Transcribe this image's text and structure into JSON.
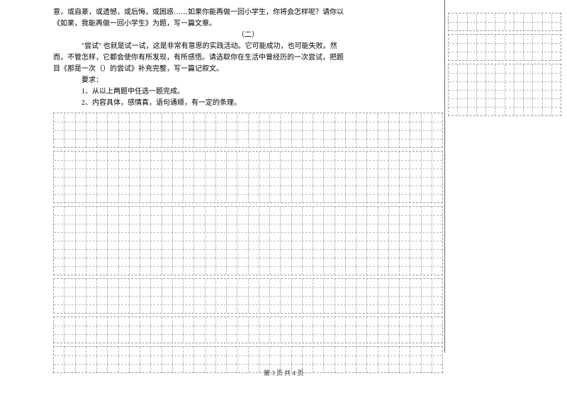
{
  "text": {
    "line1": "意，或自豪，或遗憾，或后悔，或困惑……如果你能再做一回小学生，你将会怎样呢？请你以",
    "line2": "《如果，我能再做一回小学生》为题，写一篇文章。",
    "sec2_title": "（二）",
    "line3": "\"尝试\" 也就是试一试，这是非常有意思的实践活动。它可能成功，也可能失败。然",
    "line4": "而，不管怎样，它都会使你有所发现，有所感悟。请选取你在生活中曾经历的一次尝试，把题",
    "line5": "目《那是一次（）的尝试》补充完整，写一篇记叙文。",
    "req_label": "要求：",
    "req1": "1、从以上两题中任选一题完成。",
    "req2": "2、内容具体，感情真，语句通顺，有一定的条理。"
  },
  "grids": {
    "left": {
      "cols": 36,
      "sections": [
        4,
        6,
        8,
        4,
        3,
        3
      ]
    },
    "right": {
      "cols": 12,
      "sections": [
        2,
        3,
        6
      ]
    }
  },
  "footer": "第 3 页 共 4 页",
  "style": {
    "text_color": "#000000",
    "grid_color": "#bbbbbb",
    "background": "#ffffff"
  }
}
